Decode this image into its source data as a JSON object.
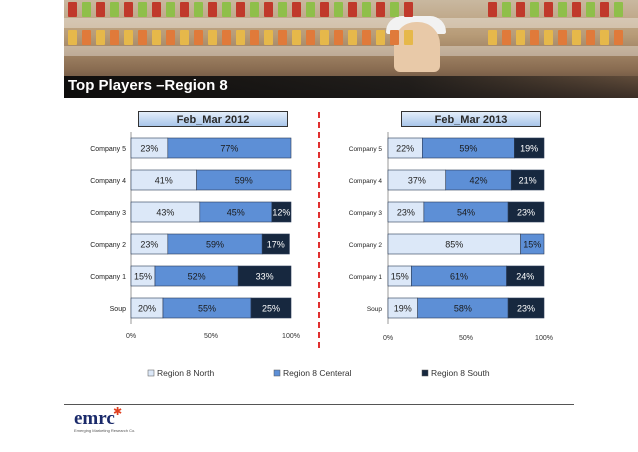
{
  "page_title": "Top Players –Region 8",
  "colors": {
    "north": "#dce8f8",
    "central": "#5d8fd6",
    "south": "#17283f"
  },
  "legend": [
    "Region 8 North",
    "Region 8 Centeral",
    "Region 8 South"
  ],
  "logo": {
    "brand": "emrc",
    "tagline": "Emerging Marketing Research Co."
  },
  "chart_data": [
    {
      "type": "bar",
      "orientation": "horizontal",
      "stacked": true,
      "title": "Feb_Mar 2012",
      "categories": [
        "Company 5",
        "Company 4",
        "Company 3",
        "Company 2",
        "Company 1",
        "Soup"
      ],
      "series": [
        {
          "name": "Region 8 North",
          "values": [
            23,
            41,
            43,
            23,
            15,
            20
          ]
        },
        {
          "name": "Region 8 Centeral",
          "values": [
            77,
            59,
            45,
            59,
            52,
            55
          ]
        },
        {
          "name": "Region 8 South",
          "values": [
            0,
            0,
            12,
            17,
            33,
            25
          ]
        }
      ],
      "xlim": [
        0,
        100
      ],
      "x_ticks": [
        "0%",
        "50%",
        "100%"
      ]
    },
    {
      "type": "bar",
      "orientation": "horizontal",
      "stacked": true,
      "title": "Feb_Mar 2013",
      "categories": [
        "Company 5",
        "Company 4",
        "Company 3",
        "Company 2",
        "Company 1",
        "Soup"
      ],
      "series": [
        {
          "name": "Region 8 North",
          "values": [
            22,
            37,
            23,
            85,
            15,
            19
          ]
        },
        {
          "name": "Region 8 Centeral",
          "values": [
            59,
            42,
            54,
            15,
            61,
            58
          ]
        },
        {
          "name": "Region 8 South",
          "values": [
            19,
            21,
            23,
            0,
            24,
            23
          ]
        }
      ],
      "xlim": [
        0,
        100
      ],
      "x_ticks": [
        "0%",
        "50%",
        "100%"
      ]
    }
  ]
}
